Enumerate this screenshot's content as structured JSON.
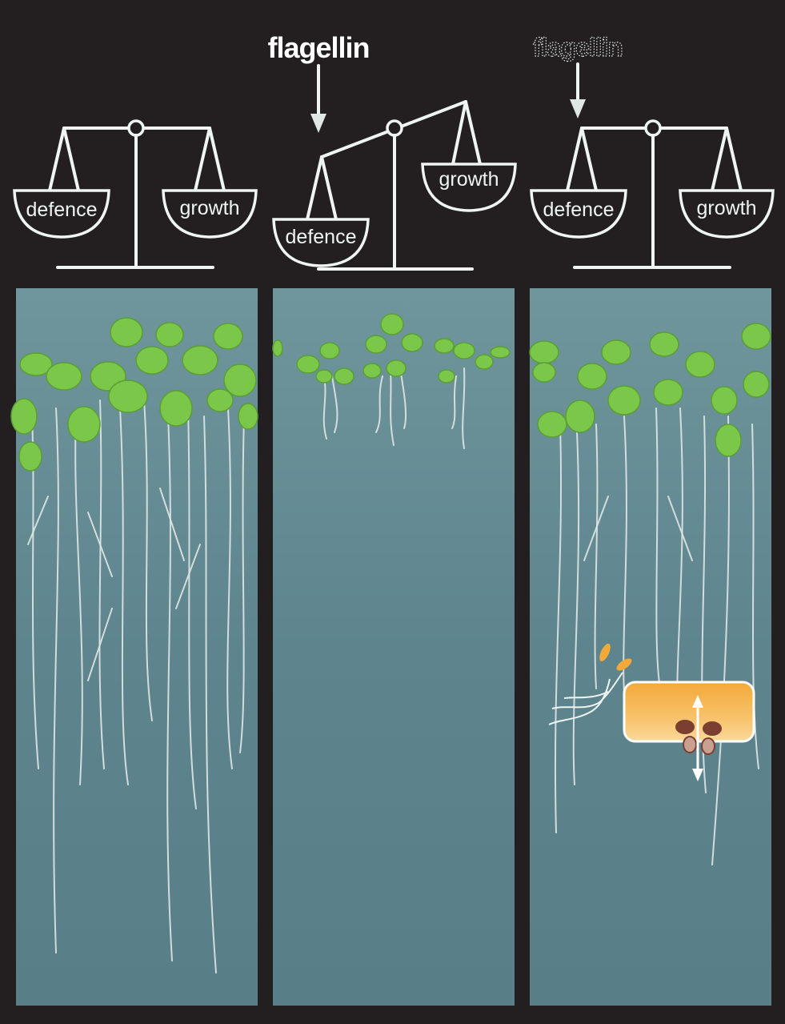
{
  "panels": [
    {
      "id": "control",
      "left_pan_label": "defence",
      "right_pan_label": "growth",
      "header": "",
      "balance": "level"
    },
    {
      "id": "flagellin",
      "left_pan_label": "defence",
      "right_pan_label": "growth",
      "header": "flagellin",
      "balance": "tipped toward defence"
    },
    {
      "id": "flagellin-suppressed",
      "left_pan_label": "defence",
      "right_pan_label": "growth",
      "header": "flagellin",
      "balance": "level"
    }
  ],
  "colors": {
    "background": "#231f20",
    "plate": "#5f8790",
    "leaf": "#7bc74a",
    "root": "#dfe6e3",
    "cell": "#f6b54a"
  }
}
